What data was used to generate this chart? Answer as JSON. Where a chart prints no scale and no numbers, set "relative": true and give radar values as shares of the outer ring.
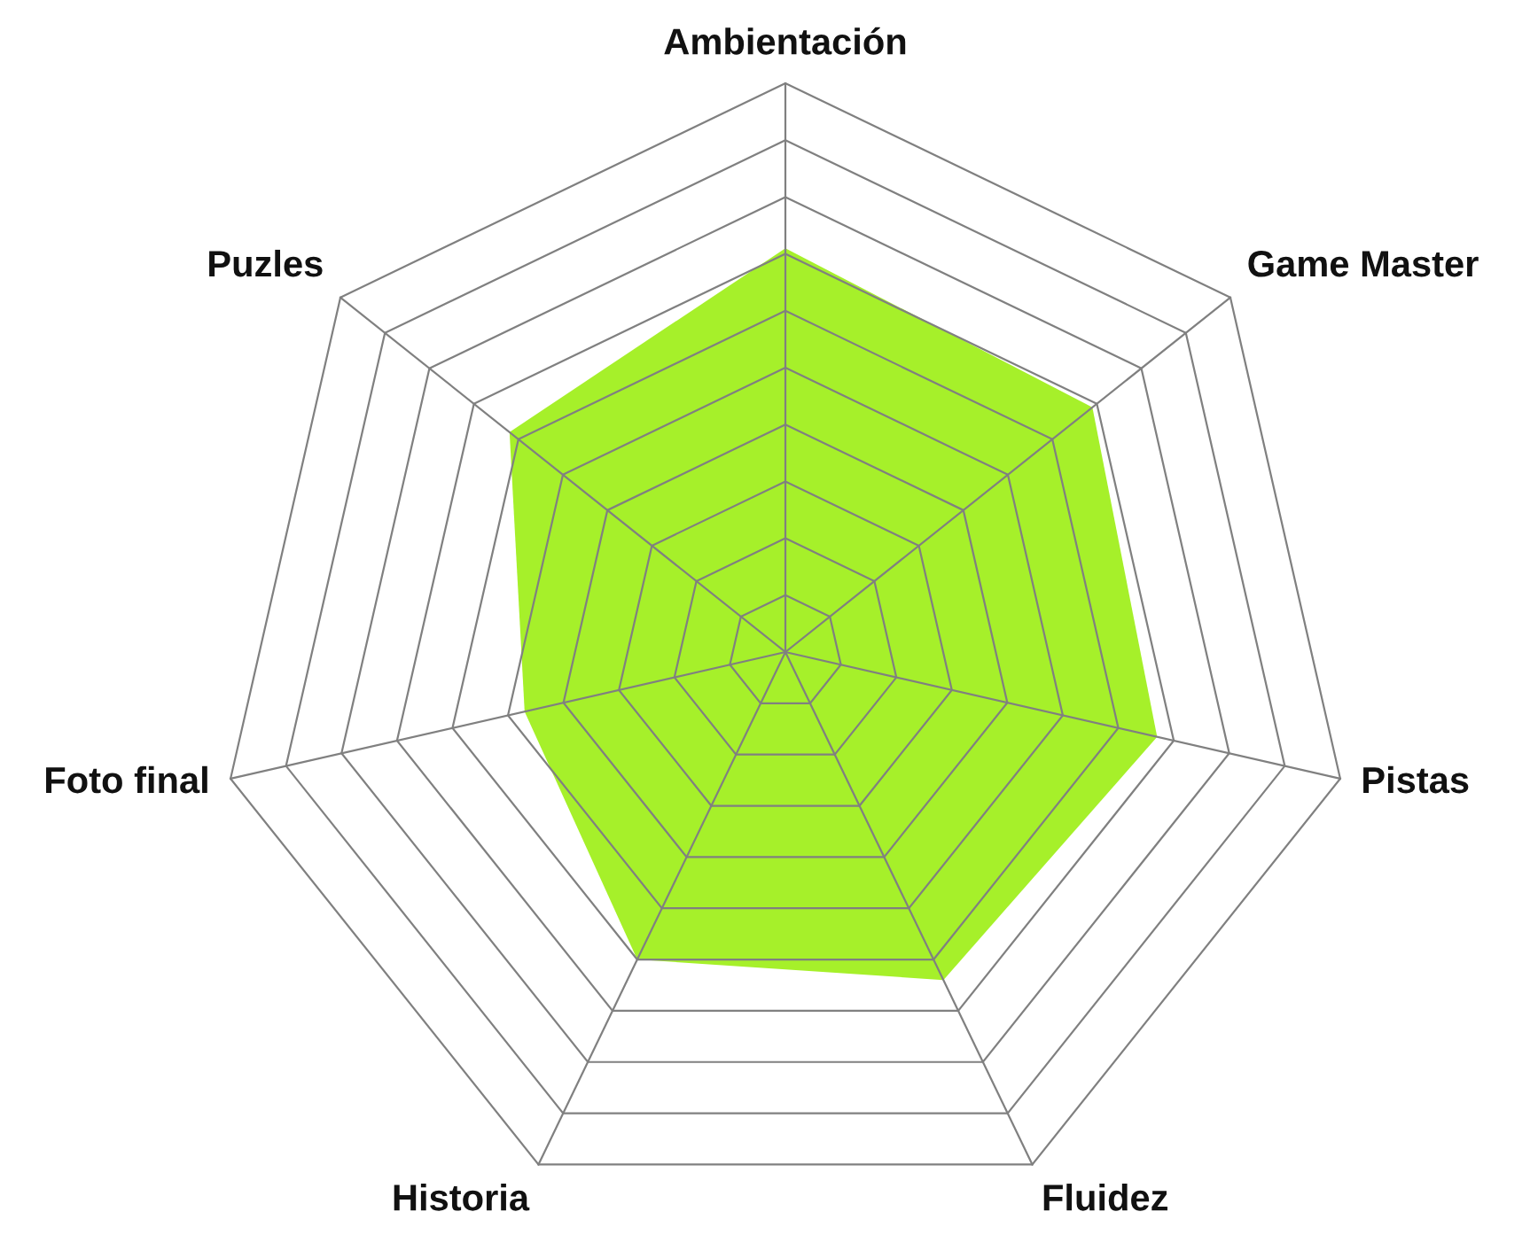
{
  "chart_data": {
    "type": "radar",
    "relative": true,
    "grid": true,
    "categories": [
      "Ambientación",
      "Game Master",
      "Pistas",
      "Fluidez",
      "Historia",
      "Foto final",
      "Puzles"
    ],
    "series": [
      {
        "color": "#a6f02a",
        "values": [
          0.71,
          0.69,
          0.67,
          0.64,
          0.6,
          0.47,
          0.62
        ]
      }
    ]
  }
}
